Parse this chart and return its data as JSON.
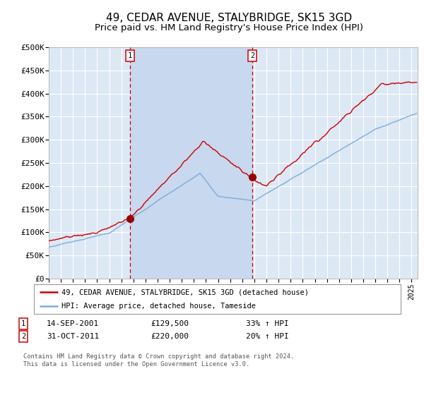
{
  "title": "49, CEDAR AVENUE, STALYBRIDGE, SK15 3GD",
  "subtitle": "Price paid vs. HM Land Registry's House Price Index (HPI)",
  "title_fontsize": 11,
  "subtitle_fontsize": 9.5,
  "background_color": "#ffffff",
  "plot_bg_color": "#dde8f5",
  "grid_color": "#ffffff",
  "ylim": [
    0,
    500000
  ],
  "yticks": [
    0,
    50000,
    100000,
    150000,
    200000,
    250000,
    300000,
    350000,
    400000,
    450000,
    500000
  ],
  "ytick_labels": [
    "£0",
    "£50K",
    "£100K",
    "£150K",
    "£200K",
    "£250K",
    "£300K",
    "£350K",
    "£400K",
    "£450K",
    "£500K"
  ],
  "hpi_color": "#7aabdc",
  "price_color": "#cc0000",
  "marker_color": "#990000",
  "vline_color": "#cc0000",
  "shade_color": "#c8d8ee",
  "sale1_x": 2001.71,
  "sale1_y": 129500,
  "sale2_x": 2011.83,
  "sale2_y": 220000,
  "marker_size": 7,
  "legend_label_price": "49, CEDAR AVENUE, STALYBRIDGE, SK15 3GD (detached house)",
  "legend_label_hpi": "HPI: Average price, detached house, Tameside",
  "annot1_date": "14-SEP-2001",
  "annot1_price": "£129,500",
  "annot1_hpi": "33% ↑ HPI",
  "annot2_date": "31-OCT-2011",
  "annot2_price": "£220,000",
  "annot2_hpi": "20% ↑ HPI",
  "footer": "Contains HM Land Registry data © Crown copyright and database right 2024.\nThis data is licensed under the Open Government Licence v3.0.",
  "xmin": 1995.0,
  "xmax": 2025.5
}
